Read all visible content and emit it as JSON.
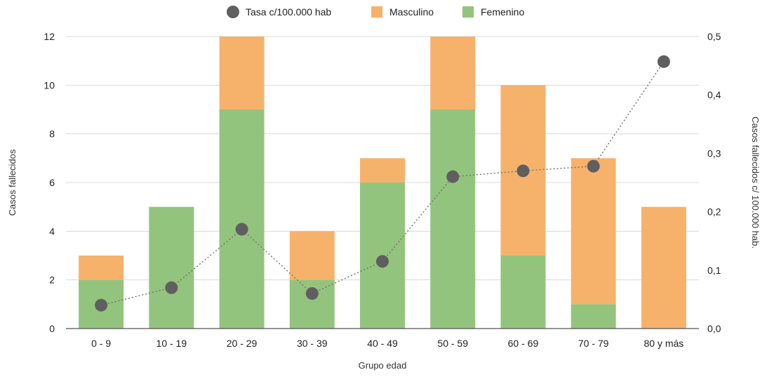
{
  "chart_data": {
    "type": "bar",
    "stacked": true,
    "categories": [
      "0 - 9",
      "10 - 19",
      "20 - 29",
      "30 - 39",
      "40 - 49",
      "50 - 59",
      "60 - 69",
      "70 - 79",
      "80 y más"
    ],
    "series": [
      {
        "name": "Femenino",
        "axis": "left",
        "color": "#93c47d",
        "values": [
          2,
          5,
          9,
          2,
          6,
          9,
          3,
          1,
          0
        ]
      },
      {
        "name": "Masculino",
        "axis": "left",
        "color": "#f6b26b",
        "values": [
          1,
          0,
          3,
          2,
          1,
          3,
          7,
          6,
          5
        ]
      },
      {
        "name": "Tasa c/100.000 hab",
        "type": "line",
        "axis": "right",
        "color": "#5f5f5f",
        "line_style": "dotted",
        "values": [
          0.04,
          0.07,
          0.17,
          0.06,
          0.115,
          0.26,
          0.27,
          0.278,
          0.457
        ]
      }
    ],
    "legend_order": [
      "Tasa c/100.000 hab",
      "Masculino",
      "Femenino"
    ],
    "legend_position": "top",
    "xlabel": "Grupo edad",
    "ylabel": "Casos fallecidos",
    "y2label": "Casos fallecidos c/ 100.000 hab.",
    "ylim": [
      0,
      12
    ],
    "yticks": [
      "0",
      "2",
      "4",
      "6",
      "8",
      "10",
      "12"
    ],
    "y2lim": [
      0,
      0.5
    ],
    "y2ticks": [
      "0,0",
      "0,1",
      "0,2",
      "0,3",
      "0,4",
      "0,5"
    ],
    "grid": "horizontal"
  }
}
